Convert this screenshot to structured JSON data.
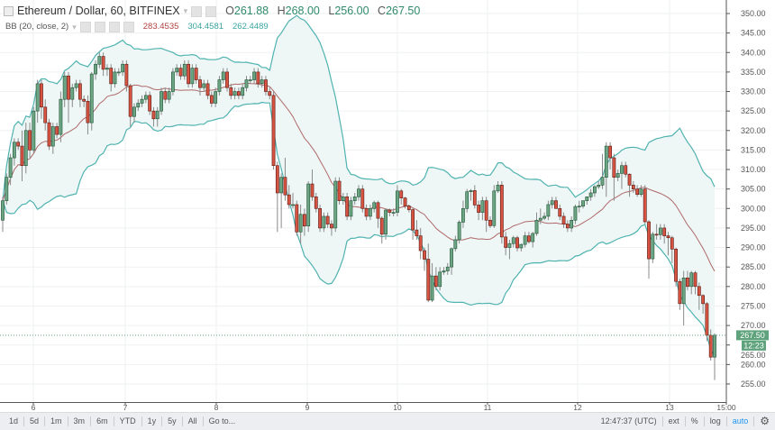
{
  "header": {
    "symbol": "Ethereum / Dollar, 60, BITFINEX",
    "ohlc": {
      "o_label": "O",
      "o": "261.88",
      "h_label": "H",
      "h": "268.00",
      "l_label": "L",
      "l": "256.00",
      "c_label": "C",
      "c": "267.50"
    },
    "indicator": "BB (20, close, 2)",
    "indicator_values": {
      "basis": "283.4535",
      "upper": "304.4581",
      "lower": "262.4489"
    }
  },
  "last_price_label": "267.50",
  "countdown_label": "12:23",
  "toolbar": {
    "ranges": [
      "1d",
      "5d",
      "1m",
      "3m",
      "6m",
      "YTD",
      "1y",
      "5y",
      "All"
    ],
    "goto": "Go to...",
    "clock": "12:47:37 (UTC)",
    "ext": "ext",
    "percent": "%",
    "log": "log",
    "auto": "auto"
  },
  "colors": {
    "up": "#6ba583",
    "down": "#d75442",
    "basis": "#b06a6a",
    "bands": "#4fb3b0",
    "band_fill": "#eef6f6",
    "last_price": "#5fa37d",
    "auto_active": "#2196f3"
  },
  "chart_data": {
    "type": "candlestick",
    "interval": "60",
    "indicator": {
      "name": "Bollinger Bands",
      "length": 20,
      "source": "close",
      "mult": 2
    },
    "ylim": [
      252,
      352
    ],
    "y_ticks": [
      "255.00",
      "260.00",
      "265.00",
      "270.00",
      "275.00",
      "280.00",
      "285.00",
      "290.00",
      "295.00",
      "300.00",
      "305.00",
      "310.00",
      "315.00",
      "320.00",
      "325.00",
      "330.00",
      "335.00",
      "340.00",
      "345.00",
      "350.00"
    ],
    "x_ticks": [
      "6",
      "7",
      "8",
      "9",
      "10",
      "11",
      "12",
      "13",
      "15:00"
    ],
    "grid": true,
    "last_price": 267.5,
    "candles": [
      [
        297,
        303,
        294,
        302
      ],
      [
        302,
        309,
        301,
        308
      ],
      [
        308,
        314,
        306,
        313
      ],
      [
        313,
        318,
        311,
        317
      ],
      [
        317,
        318,
        315,
        316
      ],
      [
        316,
        320,
        307,
        311
      ],
      [
        311,
        322,
        309,
        320
      ],
      [
        320,
        322,
        313,
        315
      ],
      [
        315,
        326,
        314,
        325
      ],
      [
        325,
        333,
        322,
        332
      ],
      [
        332,
        333,
        323,
        326
      ],
      [
        326,
        328,
        320,
        322
      ],
      [
        322,
        323,
        315,
        316
      ],
      [
        316,
        322,
        314,
        321
      ],
      [
        321,
        322,
        318,
        319
      ],
      [
        319,
        330,
        317,
        328
      ],
      [
        328,
        335,
        326,
        334
      ],
      [
        334,
        335,
        322,
        328
      ],
      [
        328,
        332,
        326,
        331
      ],
      [
        331,
        333,
        330,
        332
      ],
      [
        332,
        333,
        326,
        328
      ],
      [
        328,
        329,
        326,
        327.5
      ],
      [
        327.5,
        329,
        319,
        322
      ],
      [
        322,
        335,
        320,
        334.5
      ],
      [
        334.5,
        338,
        333,
        337
      ],
      [
        337,
        340,
        336,
        339
      ],
      [
        339,
        340,
        334,
        335.7
      ],
      [
        335.7,
        337,
        334,
        336
      ],
      [
        336,
        337,
        330,
        332
      ],
      [
        332,
        336,
        331,
        335
      ],
      [
        335,
        336,
        334,
        335
      ],
      [
        335,
        338,
        334,
        337
      ],
      [
        337,
        338,
        330,
        331.5
      ],
      [
        331.5,
        332,
        321,
        323.6
      ],
      [
        323.6,
        327,
        322,
        326
      ],
      [
        326,
        328,
        325,
        327
      ],
      [
        327,
        329,
        326,
        328
      ],
      [
        328,
        330,
        327,
        329
      ],
      [
        329,
        330,
        324,
        325
      ],
      [
        325,
        326,
        321,
        323
      ],
      [
        323,
        326,
        321,
        325
      ],
      [
        325,
        331,
        324,
        330
      ],
      [
        330,
        331,
        327,
        328
      ],
      [
        328,
        331,
        327,
        330
      ],
      [
        330,
        336,
        329,
        335
      ],
      [
        335,
        337,
        334,
        336
      ],
      [
        336,
        337,
        333,
        334
      ],
      [
        334,
        338,
        333,
        337
      ],
      [
        337,
        338,
        331,
        332
      ],
      [
        332,
        337,
        331,
        336
      ],
      [
        336,
        337,
        332,
        333
      ],
      [
        333,
        334,
        329,
        331
      ],
      [
        331,
        333,
        330,
        332
      ],
      [
        332,
        333,
        328,
        329
      ],
      [
        329,
        330,
        326,
        327
      ],
      [
        327,
        331,
        326,
        330
      ],
      [
        330,
        334,
        329,
        333
      ],
      [
        333,
        336,
        332,
        335
      ],
      [
        335,
        336,
        330,
        331
      ],
      [
        331,
        332,
        328,
        329
      ],
      [
        329,
        331,
        328,
        330
      ],
      [
        330,
        331,
        328,
        329
      ],
      [
        329,
        332,
        328,
        331
      ],
      [
        331,
        334,
        330,
        333
      ],
      [
        333,
        334,
        332,
        333
      ],
      [
        333,
        336,
        332,
        335
      ],
      [
        335,
        336,
        331,
        332
      ],
      [
        332,
        334,
        331,
        333
      ],
      [
        333,
        334,
        329,
        330
      ],
      [
        330,
        331,
        328,
        329
      ],
      [
        329,
        330,
        310,
        311
      ],
      [
        311,
        312,
        294,
        304
      ],
      [
        304,
        309,
        295,
        308
      ],
      [
        308,
        313,
        302,
        303.5
      ],
      [
        303.5,
        306,
        300,
        301
      ],
      [
        301,
        304,
        300,
        301
      ],
      [
        301,
        302,
        293,
        294
      ],
      [
        294,
        301,
        291,
        298.5
      ],
      [
        298.5,
        300,
        293,
        295.5
      ],
      [
        295.5,
        307,
        294,
        306.3
      ],
      [
        306.3,
        310,
        302,
        303
      ],
      [
        303,
        304,
        299,
        300
      ],
      [
        300,
        301,
        294,
        295
      ],
      [
        295,
        299,
        294,
        298
      ],
      [
        298,
        299,
        295,
        296
      ],
      [
        296,
        297,
        293,
        295
      ],
      [
        295,
        308,
        294,
        307
      ],
      [
        307,
        308,
        301,
        302
      ],
      [
        302,
        304,
        301,
        303
      ],
      [
        303,
        304,
        297,
        298
      ],
      [
        298,
        303,
        297,
        302
      ],
      [
        302,
        304,
        301,
        303
      ],
      [
        303,
        306,
        302,
        305
      ],
      [
        305,
        306,
        299,
        300
      ],
      [
        300,
        301,
        297,
        298
      ],
      [
        298,
        301,
        297,
        300
      ],
      [
        300,
        302,
        299,
        301.5
      ],
      [
        301.5,
        302,
        295,
        297.5
      ],
      [
        297.5,
        298,
        291,
        293.4
      ],
      [
        293.4,
        300,
        292,
        299.6
      ],
      [
        299.6,
        300,
        298,
        299
      ],
      [
        299,
        300,
        298,
        299
      ],
      [
        299,
        306,
        298,
        304.5
      ],
      [
        304.5,
        305,
        301,
        302.7
      ],
      [
        302.7,
        303,
        300,
        300.6
      ],
      [
        300.6,
        301,
        299,
        299.7
      ],
      [
        299.7,
        300,
        292,
        294.5
      ],
      [
        294.5,
        297,
        292,
        293
      ],
      [
        293,
        295,
        287,
        289.2
      ],
      [
        289.2,
        290,
        284,
        287
      ],
      [
        287,
        291,
        276,
        276.5
      ],
      [
        276.5,
        286,
        276,
        282.7
      ],
      [
        282.7,
        285,
        279,
        280
      ],
      [
        280,
        285,
        279,
        283.7
      ],
      [
        283.7,
        285,
        283,
        284
      ],
      [
        284,
        286,
        283,
        285
      ],
      [
        285,
        290,
        283,
        289.7
      ],
      [
        289.7,
        293,
        289,
        292
      ],
      [
        292,
        297,
        291,
        296.5
      ],
      [
        296.5,
        302,
        295,
        300
      ],
      [
        300,
        305,
        299,
        304.3
      ],
      [
        304.3,
        305,
        302,
        304.6
      ],
      [
        304.6,
        306,
        300,
        300.9
      ],
      [
        300.9,
        302,
        297,
        299
      ],
      [
        299,
        303,
        297,
        302
      ],
      [
        302,
        303,
        294,
        297
      ],
      [
        297,
        298,
        295,
        295.6
      ],
      [
        295.6,
        306,
        295,
        304.5
      ],
      [
        304.5,
        307,
        304,
        306
      ],
      [
        306,
        307,
        291,
        292.7
      ],
      [
        292.7,
        294,
        288,
        290
      ],
      [
        290,
        292,
        287,
        291
      ],
      [
        291,
        293,
        290,
        292.5
      ],
      [
        292.5,
        293,
        289,
        289.9
      ],
      [
        289.9,
        291,
        289,
        290.8
      ],
      [
        290.8,
        294,
        290,
        293
      ],
      [
        293,
        294,
        291,
        291.5
      ],
      [
        291.5,
        294,
        290,
        293.6
      ],
      [
        293.6,
        299,
        293,
        297
      ],
      [
        297,
        300,
        296,
        297.5
      ],
      [
        297.5,
        299,
        297,
        298
      ],
      [
        298,
        302,
        297,
        301
      ],
      [
        301,
        303,
        300,
        302
      ],
      [
        302,
        303,
        300,
        300
      ],
      [
        300,
        301,
        297,
        298
      ],
      [
        298,
        299,
        295,
        296
      ],
      [
        296,
        297,
        294,
        295
      ],
      [
        295,
        298,
        294,
        297
      ],
      [
        297,
        301,
        296,
        300.5
      ],
      [
        300.5,
        302,
        299,
        300.6
      ],
      [
        300.6,
        302,
        300,
        302
      ],
      [
        302,
        303,
        301,
        303
      ],
      [
        303,
        305,
        302,
        304
      ],
      [
        304,
        306,
        303,
        305.6
      ],
      [
        305.6,
        307,
        305,
        306
      ],
      [
        306,
        314,
        305,
        308
      ],
      [
        308,
        317,
        303,
        316
      ],
      [
        316,
        317,
        310,
        313
      ],
      [
        313,
        314,
        302,
        308
      ],
      [
        308,
        310,
        307,
        309
      ],
      [
        309,
        312,
        305,
        311
      ],
      [
        311,
        312,
        308,
        308.8
      ],
      [
        308.8,
        309,
        303,
        306
      ],
      [
        306,
        307,
        304,
        305
      ],
      [
        305,
        306,
        303,
        303.6
      ],
      [
        303.6,
        306,
        303,
        305
      ],
      [
        305,
        306,
        296,
        296.6
      ],
      [
        296.6,
        297,
        282,
        287.1
      ],
      [
        287.1,
        294,
        286,
        293.4
      ],
      [
        293.4,
        296,
        292,
        293.3
      ],
      [
        293.3,
        296,
        292,
        295
      ],
      [
        295,
        296,
        291,
        293
      ],
      [
        293,
        294,
        288,
        292.5
      ],
      [
        292.5,
        293,
        286,
        289.6
      ],
      [
        289.6,
        290,
        280,
        281.3
      ],
      [
        281.3,
        282,
        274,
        275.6
      ],
      [
        275.6,
        284,
        270,
        282.2
      ],
      [
        282.2,
        284,
        279,
        280
      ],
      [
        280,
        284,
        278,
        283.5
      ],
      [
        283.5,
        284,
        278,
        280
      ],
      [
        280,
        281,
        274,
        277.7
      ],
      [
        277.7,
        278,
        273,
        275.6
      ],
      [
        275.6,
        276,
        266,
        267.5
      ],
      [
        267.5,
        269,
        261,
        261.88
      ],
      [
        261.88,
        268,
        256,
        267.5
      ]
    ]
  }
}
